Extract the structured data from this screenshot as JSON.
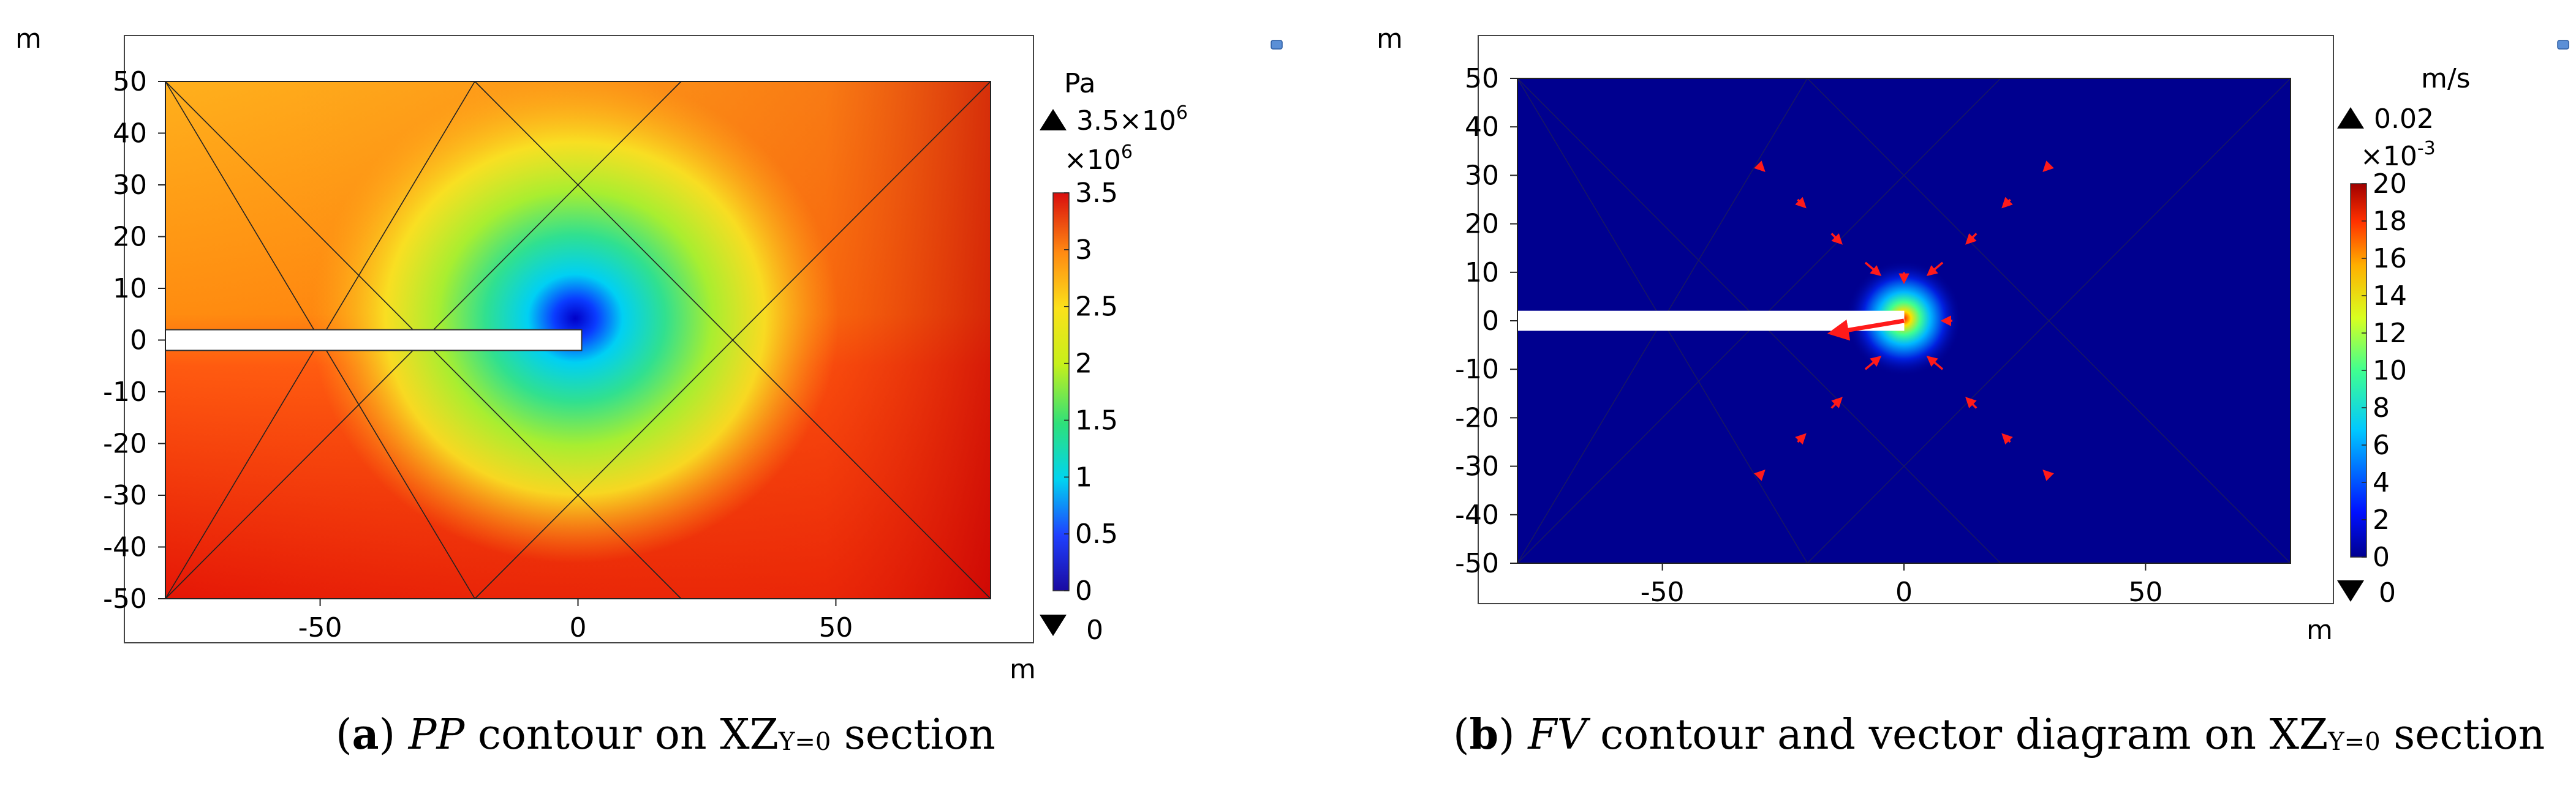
{
  "figure": {
    "panels": [
      {
        "id": "a",
        "caption": {
          "label": "a",
          "var": "PP",
          "text_pre": "contour on XZ",
          "sub": "Y=0",
          "text_post": "section"
        },
        "axis_unit_y": "m",
        "axis_unit_x": "m",
        "colorbar": {
          "unit": "Pa",
          "max_label": "3.5×10",
          "max_exp": "6",
          "multiplier": "×10",
          "multiplier_exp": "6",
          "min_label": "0",
          "colormap": "rainbow",
          "ticks": [
            "0",
            "0.5",
            "1",
            "1.5",
            "2",
            "2.5",
            "3",
            "3.5"
          ]
        }
      },
      {
        "id": "b",
        "caption": {
          "label": "b",
          "var": "FV",
          "text_pre": "contour and vector diagram on XZ",
          "sub": "Y=0",
          "text_post": "section"
        },
        "axis_unit_y": "m",
        "axis_unit_x": "m",
        "colorbar": {
          "unit": "m/s",
          "max_label": "0.02",
          "max_exp": "",
          "multiplier": "×10",
          "multiplier_exp": "-3",
          "min_label": "0",
          "colormap": "jet",
          "ticks": [
            "0",
            "2",
            "4",
            "6",
            "8",
            "10",
            "12",
            "14",
            "16",
            "18",
            "20"
          ]
        }
      }
    ]
  },
  "chart_data": [
    {
      "type": "heatmap",
      "title": "PP contour on XZY=0 section",
      "variable": "PP",
      "xlabel": "m",
      "ylabel": "m",
      "xlim": [
        -80,
        80
      ],
      "ylim": [
        -50,
        50
      ],
      "xticks": [
        -50,
        0,
        50
      ],
      "yticks": [
        -50,
        -40,
        -30,
        -20,
        -10,
        0,
        10,
        20,
        30,
        40,
        50
      ],
      "colorbar_unit": "Pa",
      "colorbar_range": [
        0,
        3500000
      ],
      "colorbar_ticks_scaled": [
        0,
        0.5,
        1,
        1.5,
        2,
        2.5,
        3,
        3.5
      ],
      "colorbar_scale": 1000000,
      "tunnel": {
        "x_start": -80,
        "x_end": 0,
        "z_center": 0,
        "height": 4
      },
      "mesh_lines": [
        [
          [
            -80,
            50
          ],
          [
            -20,
            -50
          ]
        ],
        [
          [
            -80,
            -50
          ],
          [
            -20,
            50
          ]
        ],
        [
          [
            -20,
            50
          ],
          [
            80,
            -50
          ]
        ],
        [
          [
            -20,
            -50
          ],
          [
            80,
            50
          ]
        ],
        [
          [
            20,
            50
          ],
          [
            -80,
            -50
          ]
        ],
        [
          [
            20,
            -50
          ],
          [
            -80,
            50
          ]
        ]
      ],
      "field_samples": [
        {
          "x": 0,
          "z": 0,
          "value": 0
        },
        {
          "x": 3,
          "z": 0,
          "value": 600000
        },
        {
          "x": 8,
          "z": 0,
          "value": 1600000
        },
        {
          "x": 15,
          "z": 0,
          "value": 2200000
        },
        {
          "x": 0,
          "z": 20,
          "value": 2300000
        },
        {
          "x": 0,
          "z": -20,
          "value": 2600000
        },
        {
          "x": -60,
          "z": 30,
          "value": 3000000
        },
        {
          "x": 75,
          "z": -45,
          "value": 3500000
        }
      ]
    },
    {
      "type": "heatmap",
      "title": "FV contour and vector diagram on XZY=0 section",
      "variable": "FV",
      "xlabel": "m",
      "ylabel": "m",
      "xlim": [
        -80,
        80
      ],
      "ylim": [
        -50,
        50
      ],
      "xticks": [
        -50,
        0,
        50
      ],
      "yticks": [
        -50,
        -40,
        -30,
        -20,
        -10,
        0,
        10,
        20,
        30,
        40,
        50
      ],
      "colorbar_unit": "m/s",
      "colorbar_range": [
        0,
        0.02
      ],
      "colorbar_ticks_scaled": [
        0,
        2,
        4,
        6,
        8,
        10,
        12,
        14,
        16,
        18,
        20
      ],
      "colorbar_scale": 0.001,
      "tunnel": {
        "x_start": -80,
        "x_end": 0,
        "z_center": 0,
        "height": 4
      },
      "mesh_lines": [
        [
          [
            -80,
            50
          ],
          [
            -20,
            -50
          ]
        ],
        [
          [
            -80,
            -50
          ],
          [
            -20,
            50
          ]
        ],
        [
          [
            -20,
            50
          ],
          [
            80,
            -50
          ]
        ],
        [
          [
            -20,
            -50
          ],
          [
            80,
            50
          ]
        ],
        [
          [
            20,
            50
          ],
          [
            -80,
            -50
          ]
        ],
        [
          [
            20,
            -50
          ],
          [
            -80,
            50
          ]
        ]
      ],
      "hotspot": {
        "x": 0,
        "z": 0,
        "peak": 0.02,
        "radius": 8
      },
      "vectors": [
        {
          "x": 0,
          "z": 0,
          "dx": -15,
          "dz": -2.5
        },
        {
          "x": -8,
          "z": 12,
          "dx": 3,
          "dz": -2.5
        },
        {
          "x": 8,
          "z": 12,
          "dx": -3,
          "dz": -2.5
        },
        {
          "x": -8,
          "z": -10,
          "dx": 3,
          "dz": 2.5
        },
        {
          "x": 8,
          "z": -10,
          "dx": -3,
          "dz": 2.5
        },
        {
          "x": -15,
          "z": 18,
          "dx": 2,
          "dz": -2
        },
        {
          "x": 15,
          "z": 18,
          "dx": -2,
          "dz": -2
        },
        {
          "x": -15,
          "z": -18,
          "dx": 2,
          "dz": 2
        },
        {
          "x": 15,
          "z": -18,
          "dx": -2,
          "dz": 2
        },
        {
          "x": -22,
          "z": 25,
          "dx": 1.5,
          "dz": -1.5
        },
        {
          "x": 22,
          "z": 25,
          "dx": -1.5,
          "dz": -1.5
        },
        {
          "x": -22,
          "z": -25,
          "dx": 1.5,
          "dz": 1.5
        },
        {
          "x": 22,
          "z": -25,
          "dx": -1.5,
          "dz": 1.5
        },
        {
          "x": -30,
          "z": 32,
          "dx": 1,
          "dz": -1
        },
        {
          "x": 30,
          "z": 32,
          "dx": -1,
          "dz": -1
        },
        {
          "x": -30,
          "z": -32,
          "dx": 1,
          "dz": 1
        },
        {
          "x": 30,
          "z": -32,
          "dx": -1,
          "dz": 1
        },
        {
          "x": 10,
          "z": 0,
          "dx": -2,
          "dz": 0
        },
        {
          "x": 0,
          "z": 10,
          "dx": 0,
          "dz": -2
        }
      ]
    }
  ]
}
